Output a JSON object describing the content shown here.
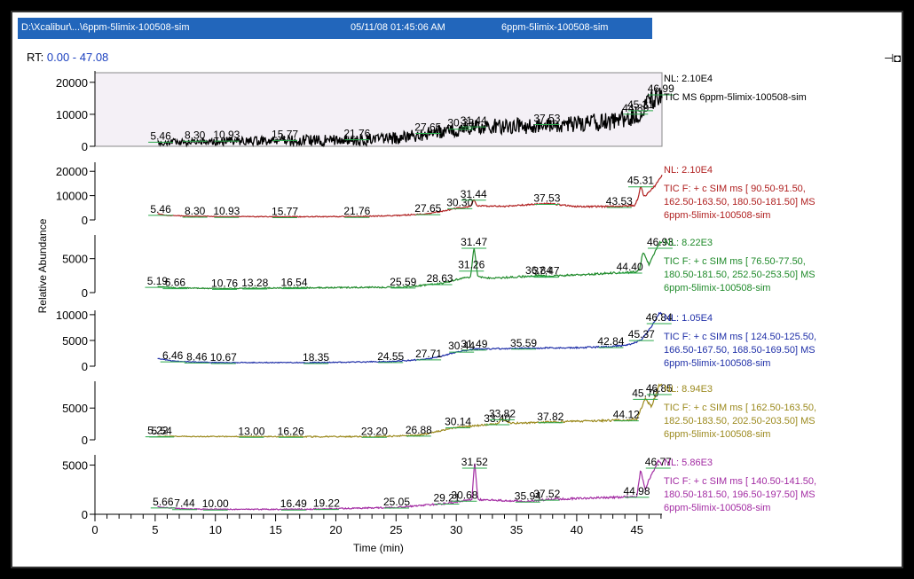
{
  "header": {
    "path": "D:\\Xcalibur\\...\\6ppm-5limix-100508-sim",
    "timestamp": "05/11/08 01:45:06 AM",
    "filename": "6ppm-5limix-100508-sim"
  },
  "rt_range": {
    "label": "RT:",
    "value": "0.00 - 47.08"
  },
  "icons": {
    "pin": "pin-icon"
  },
  "chart_data": {
    "type": "line",
    "xlabel": "Time (min)",
    "ylabel": "Relative Abundance",
    "xlim": [
      0,
      47.08
    ],
    "x_ticks": [
      0,
      5,
      10,
      15,
      20,
      25,
      30,
      35,
      40,
      45
    ],
    "grid": false,
    "series": [
      {
        "color": "#000000",
        "fill": "#f4f0f6",
        "ylim": [
          0,
          23000
        ],
        "y_ticks": [
          0,
          10000,
          20000
        ],
        "nl": "NL: 2.10E4",
        "desc": [
          "TIC  MS 6ppm-5limix-100508-sim"
        ],
        "label_offset": 900,
        "noise": 2200,
        "x": [
          5.2,
          8,
          12,
          17,
          22,
          26,
          28,
          30,
          31.4,
          33,
          36,
          38,
          41,
          43,
          44.5,
          45.3,
          46,
          46.99,
          47.08
        ],
        "y": [
          1200,
          1500,
          1600,
          1800,
          2000,
          2800,
          4200,
          5000,
          6000,
          6200,
          6400,
          6800,
          7300,
          7800,
          9000,
          11000,
          14000,
          16000,
          16000
        ],
        "peaks": [
          {
            "x": 5.46,
            "label": "5.46"
          },
          {
            "x": 8.3,
            "label": "8.30"
          },
          {
            "x": 10.93,
            "label": "10.93"
          },
          {
            "x": 15.77,
            "label": "15.77"
          },
          {
            "x": 21.76,
            "label": "21.76"
          },
          {
            "x": 27.65,
            "label": "27.65"
          },
          {
            "x": 30.38,
            "label": "30.38"
          },
          {
            "x": 31.44,
            "label": "31.44"
          },
          {
            "x": 37.53,
            "label": "37.53"
          },
          {
            "x": 44.89,
            "label": "44.89"
          },
          {
            "x": 45.31,
            "label": "45.31"
          },
          {
            "x": 46.99,
            "label": "46.99"
          }
        ]
      },
      {
        "color": "#b02020",
        "ylim": [
          0,
          23000
        ],
        "y_ticks": [
          0,
          10000,
          20000
        ],
        "nl": "NL: 2.10E4",
        "desc": [
          "TIC F: + c SIM ms [ 90.50-91.50,",
          "162.50-163.50, 180.50-181.50]  MS",
          "6ppm-5limix-100508-sim"
        ],
        "label_offset": 700,
        "noise": 250,
        "x": [
          5.2,
          6,
          8.3,
          10.9,
          15.8,
          21.8,
          25,
          27.6,
          30.3,
          31.2,
          31.44,
          31.7,
          34,
          37.5,
          40,
          43.5,
          44.8,
          45.1,
          45.31,
          45.6,
          46.5,
          47.08
        ],
        "y": [
          2500,
          1800,
          1500,
          1400,
          1300,
          1400,
          1800,
          2500,
          5000,
          5600,
          8500,
          5800,
          5600,
          6800,
          5500,
          5500,
          6000,
          9000,
          14000,
          9500,
          14000,
          18500
        ],
        "peaks": [
          {
            "x": 5.46,
            "label": "5.46"
          },
          {
            "x": 8.3,
            "label": "8.30"
          },
          {
            "x": 10.93,
            "label": "10.93"
          },
          {
            "x": 15.77,
            "label": "15.77"
          },
          {
            "x": 21.76,
            "label": "21.76"
          },
          {
            "x": 27.65,
            "label": "27.65"
          },
          {
            "x": 30.3,
            "label": "30.30"
          },
          {
            "x": 31.44,
            "label": "31.44"
          },
          {
            "x": 37.53,
            "label": "37.53"
          },
          {
            "x": 43.53,
            "label": "43.53"
          },
          {
            "x": 45.31,
            "label": "45.31"
          }
        ]
      },
      {
        "color": "#1f8a2a",
        "ylim": [
          0,
          8220
        ],
        "y_ticks": [
          0,
          5000
        ],
        "nl": "NL: 8.22E3",
        "desc": [
          "TIC F: + c SIM ms [ 76.50-77.50,",
          "180.50-181.50, 252.50-253.50]  MS",
          "6ppm-5limix-100508-sim"
        ],
        "label_offset": 260,
        "noise": 120,
        "x": [
          5.2,
          6.7,
          10.8,
          13.3,
          16.5,
          25.6,
          28.6,
          30,
          31.2,
          31.47,
          31.8,
          33,
          36.8,
          37.5,
          40,
          44.4,
          45.2,
          45.5,
          46,
          46.93,
          47.08
        ],
        "y": [
          900,
          700,
          600,
          650,
          700,
          800,
          1300,
          1900,
          2300,
          6800,
          2300,
          2100,
          2500,
          2400,
          2600,
          3000,
          3200,
          6000,
          4200,
          7500,
          7200
        ],
        "peaks": [
          {
            "x": 5.19,
            "label": "5.19"
          },
          {
            "x": 6.66,
            "label": "6.66"
          },
          {
            "x": 10.76,
            "label": "10.76"
          },
          {
            "x": 13.28,
            "label": "13.28"
          },
          {
            "x": 16.54,
            "label": "16.54"
          },
          {
            "x": 25.59,
            "label": "25.59"
          },
          {
            "x": 28.63,
            "label": "28.63"
          },
          {
            "x": 31.26,
            "label": "31.26"
          },
          {
            "x": 31.47,
            "label": "31.47"
          },
          {
            "x": 36.84,
            "label": "36.84"
          },
          {
            "x": 37.47,
            "label": "37.47"
          },
          {
            "x": 44.4,
            "label": "44.40"
          },
          {
            "x": 46.93,
            "label": "46.93"
          }
        ]
      },
      {
        "color": "#1f2fa8",
        "ylim": [
          0,
          10500
        ],
        "y_ticks": [
          0,
          5000,
          10000
        ],
        "nl": "NL: 1.05E4",
        "desc": [
          "TIC F: + c SIM ms [ 124.50-125.50,",
          "166.50-167.50, 168.50-169.50]  MS",
          "6ppm-5limix-100508-sim"
        ],
        "label_offset": 330,
        "noise": 120,
        "x": [
          5.2,
          6.5,
          8.5,
          10.7,
          18.4,
          24.6,
          27.7,
          30.4,
          31.5,
          35.6,
          40,
          42.8,
          44.5,
          45.4,
          46,
          46.84,
          47.08
        ],
        "y": [
          1500,
          1000,
          800,
          700,
          700,
          900,
          1400,
          2900,
          3300,
          3500,
          3600,
          3800,
          4200,
          5200,
          7000,
          10200,
          10300
        ],
        "peaks": [
          {
            "x": 6.46,
            "label": "6.46"
          },
          {
            "x": 8.46,
            "label": "8.46"
          },
          {
            "x": 10.67,
            "label": "10.67"
          },
          {
            "x": 18.35,
            "label": "18.35"
          },
          {
            "x": 24.55,
            "label": "24.55"
          },
          {
            "x": 27.71,
            "label": "27.71"
          },
          {
            "x": 30.44,
            "label": "30.44"
          },
          {
            "x": 31.49,
            "label": "31.49"
          },
          {
            "x": 35.59,
            "label": "35.59"
          },
          {
            "x": 42.84,
            "label": "42.84"
          },
          {
            "x": 45.37,
            "label": "45.37"
          },
          {
            "x": 46.84,
            "label": "46.84"
          }
        ]
      },
      {
        "color": "#9c8a1e",
        "ylim": [
          0,
          8940
        ],
        "y_ticks": [
          0,
          5000
        ],
        "nl": "NL: 8.94E3",
        "desc": [
          "TIC F: + c SIM ms [ 162.50-163.50,",
          "182.50-183.50, 202.50-203.50]  MS",
          "6ppm-5limix-100508-sim"
        ],
        "label_offset": 300,
        "noise": 120,
        "x": [
          5.2,
          5.5,
          13,
          16.3,
          23.2,
          26.9,
          30.1,
          33.4,
          33.8,
          34.5,
          37.8,
          44.1,
          45,
          45.7,
          46.2,
          46.85,
          47.08
        ],
        "y": [
          600,
          550,
          500,
          500,
          500,
          700,
          2000,
          2500,
          3300,
          2600,
          2800,
          3100,
          3300,
          6500,
          5200,
          8600,
          8700
        ],
        "peaks": [
          {
            "x": 5.22,
            "label": "5.22"
          },
          {
            "x": 5.54,
            "label": "5.54"
          },
          {
            "x": 13.0,
            "label": "13.00"
          },
          {
            "x": 16.26,
            "label": "16.26"
          },
          {
            "x": 23.2,
            "label": "23.20"
          },
          {
            "x": 26.88,
            "label": "26.88"
          },
          {
            "x": 30.14,
            "label": "30.14"
          },
          {
            "x": 33.4,
            "label": "33.40"
          },
          {
            "x": 33.82,
            "label": "33.82"
          },
          {
            "x": 37.82,
            "label": "37.82"
          },
          {
            "x": 44.12,
            "label": "44.12"
          },
          {
            "x": 45.7,
            "label": "45.70"
          },
          {
            "x": 46.85,
            "label": "46.85"
          }
        ]
      },
      {
        "color": "#a32ca3",
        "ylim": [
          0,
          5860
        ],
        "y_ticks": [
          0,
          5000
        ],
        "nl": "NL: 5.86E3",
        "desc": [
          "TIC F: + c SIM ms [ 140.50-141.50,",
          "180.50-181.50, 196.50-197.50]  MS",
          "6ppm-5limix-100508-sim"
        ],
        "label_offset": 200,
        "noise": 80,
        "x": [
          5.2,
          5.7,
          7.4,
          10,
          16.5,
          19.2,
          25,
          29.2,
          30.7,
          31.3,
          31.52,
          31.8,
          34,
          35.9,
          37.5,
          40,
          45,
          45.3,
          45.7,
          46,
          46.77,
          47.08
        ],
        "y": [
          800,
          700,
          550,
          500,
          500,
          550,
          700,
          1100,
          1400,
          1500,
          5500,
          1500,
          1400,
          1300,
          1500,
          1600,
          1800,
          4500,
          2500,
          3500,
          5400,
          5000
        ],
        "peaks": [
          {
            "x": 5.66,
            "label": "5.66"
          },
          {
            "x": 7.44,
            "label": "7.44"
          },
          {
            "x": 10.0,
            "label": "10.00"
          },
          {
            "x": 16.49,
            "label": "16.49"
          },
          {
            "x": 19.22,
            "label": "19.22"
          },
          {
            "x": 25.05,
            "label": "25.05"
          },
          {
            "x": 29.21,
            "label": "29.21"
          },
          {
            "x": 30.68,
            "label": "30.68"
          },
          {
            "x": 31.52,
            "label": "31.52"
          },
          {
            "x": 35.94,
            "label": "35.94"
          },
          {
            "x": 37.52,
            "label": "37.52"
          },
          {
            "x": 44.98,
            "label": "44.98"
          },
          {
            "x": 46.77,
            "label": "46.77"
          }
        ]
      }
    ]
  }
}
